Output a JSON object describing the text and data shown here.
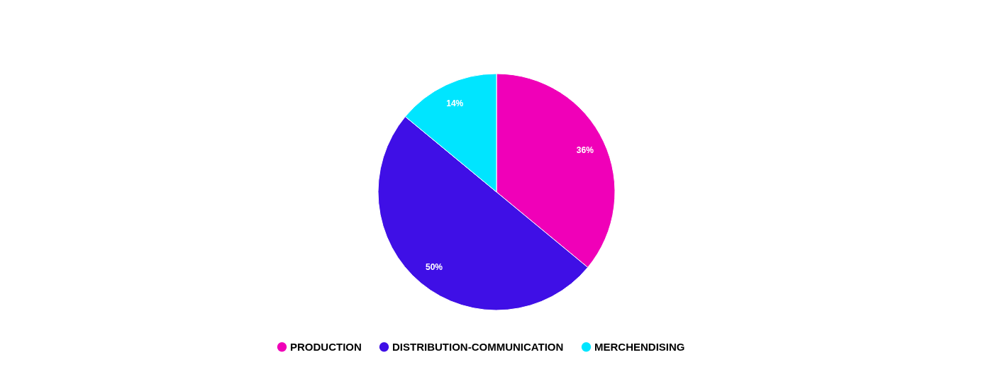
{
  "chart_data": {
    "type": "pie",
    "categories": [
      "PRODUCTION",
      "DISTRIBUTION-COMMUNICATION",
      "MERCHENDISING"
    ],
    "values": [
      36,
      50,
      14
    ],
    "colors": [
      "#f000b8",
      "#3f0fe6",
      "#00e5ff"
    ],
    "value_labels": [
      "36%",
      "50%",
      "14%"
    ],
    "legend": "bottom"
  }
}
